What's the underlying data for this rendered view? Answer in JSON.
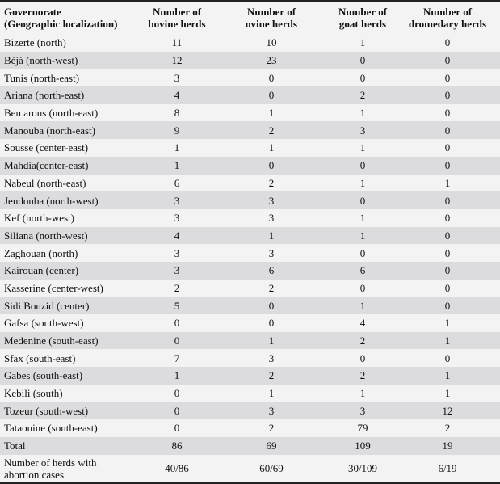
{
  "headers": [
    "Governorate\n(Geographic localization)",
    "Number of\nbovine herds",
    "Number of\novine herds",
    "Number of\ngoat herds",
    "Number of\ndromedary herds"
  ],
  "rows": [
    [
      "Bizerte (north)",
      "11",
      "10",
      "1",
      "0"
    ],
    [
      "Béjà (north-west)",
      "12",
      "23",
      "0",
      "0"
    ],
    [
      "Tunis (north-east)",
      "3",
      "0",
      "0",
      "0"
    ],
    [
      "Ariana (north-east)",
      "4",
      "0",
      "2",
      "0"
    ],
    [
      "Ben arous (north-east)",
      "8",
      "1",
      "1",
      "0"
    ],
    [
      "Manouba (north-east)",
      "9",
      "2",
      "3",
      "0"
    ],
    [
      "Sousse (center-east)",
      "1",
      "1",
      "1",
      "0"
    ],
    [
      "Mahdia(center-east)",
      "1",
      "0",
      "0",
      "0"
    ],
    [
      "Nabeul (north-east)",
      "6",
      "2",
      "1",
      "1"
    ],
    [
      "Jendouba (north-west)",
      "3",
      "3",
      "0",
      "0"
    ],
    [
      "Kef (north-west)",
      "3",
      "3",
      "1",
      "0"
    ],
    [
      "Siliana (north-west)",
      "4",
      "1",
      "1",
      "0"
    ],
    [
      "Zaghouan (north)",
      "3",
      "3",
      "0",
      "0"
    ],
    [
      "Kairouan (center)",
      "3",
      "6",
      "6",
      "0"
    ],
    [
      "Kasserine (center-west)",
      "2",
      "2",
      "0",
      "0"
    ],
    [
      "Sidi Bouzid (center)",
      "5",
      "0",
      "1",
      "0"
    ],
    [
      "Gafsa (south-west)",
      "0",
      "0",
      "4",
      "1"
    ],
    [
      "Medenine (south-east)",
      "0",
      "1",
      "2",
      "1"
    ],
    [
      "Sfax (south-east)",
      "7",
      "3",
      "0",
      "0"
    ],
    [
      "Gabes (south-east)",
      "1",
      "2",
      "2",
      "1"
    ],
    [
      "Kebili (south)",
      "0",
      "1",
      "1",
      "1"
    ],
    [
      "Tozeur (south-west)",
      "0",
      "3",
      "3",
      "12"
    ],
    [
      "Tataouine (south-east)",
      "0",
      "2",
      "79",
      "2"
    ],
    [
      "Total",
      "86",
      "69",
      "109",
      "19"
    ],
    [
      "Number of herds with\nabortion cases",
      "40/86",
      "60/69",
      "30/109",
      "6/19"
    ]
  ]
}
